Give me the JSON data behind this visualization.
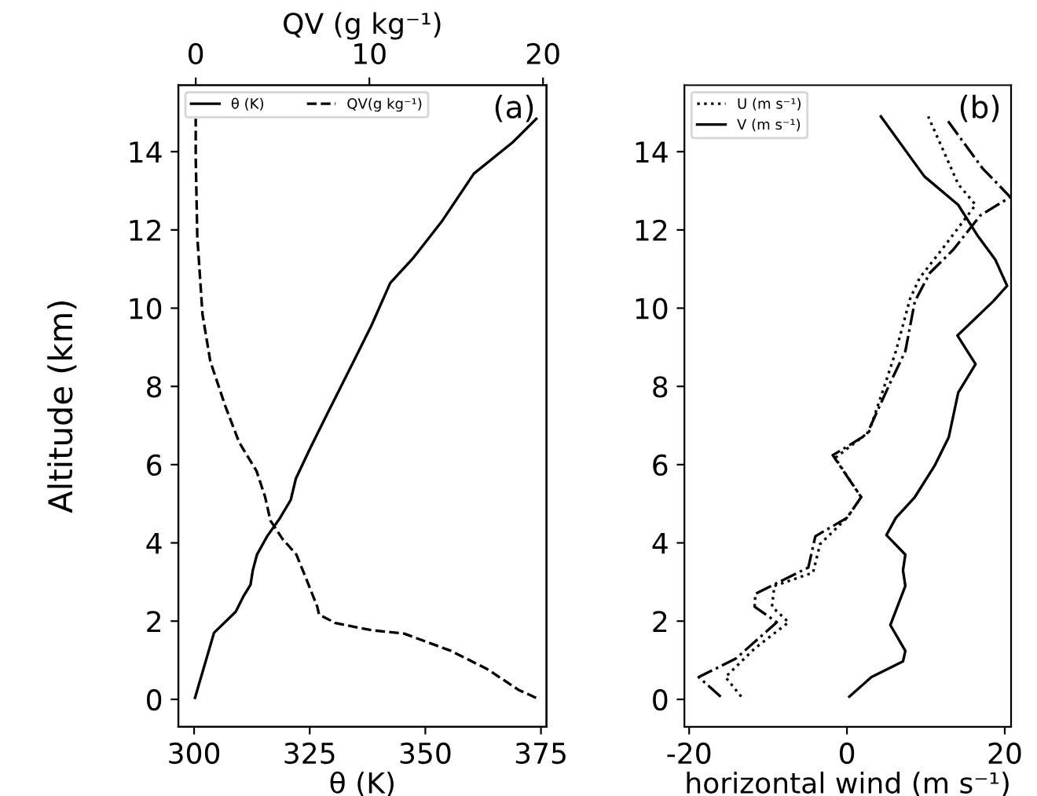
{
  "chart_data": [
    {
      "type": "line",
      "ylabel": "Altitude (km)",
      "xlabel": "θ (K)",
      "x2label": "QV (g kg⁻¹)",
      "xlim": [
        296.6,
        376.2
      ],
      "xticks": [
        300,
        325,
        350,
        375
      ],
      "x2lim": [
        -1,
        20.2
      ],
      "x2ticks": [
        0,
        10,
        20
      ],
      "ylim": [
        -0.7,
        15.7
      ],
      "yticks": [
        0,
        2,
        4,
        6,
        8,
        10,
        12,
        14
      ],
      "legend": "top left",
      "grid": false,
      "marker": "none",
      "annotations": [
        "(a)"
      ],
      "series": [
        {
          "name": "θ (K)",
          "color": "#000000",
          "line_style": "solid",
          "x": [
            300.2,
            304.3,
            309.0,
            310.7,
            312.2,
            312.7,
            313.6,
            315.8,
            318.6,
            320.9,
            322.0,
            324.9,
            328.8,
            334.5,
            338.4,
            342.4,
            347.5,
            353.7,
            360.5,
            368.9,
            374.0
          ],
          "values": [
            0.04,
            1.7,
            2.24,
            2.64,
            2.93,
            3.3,
            3.7,
            4.17,
            4.64,
            5.1,
            5.64,
            6.37,
            7.3,
            8.64,
            9.57,
            10.64,
            11.3,
            12.24,
            13.44,
            14.24,
            14.84
          ]
        },
        {
          "name": "QV(g kg⁻¹)",
          "color": "#000000",
          "line_style": "dashed",
          "axis": "x2",
          "x": [
            19.6,
            18.6,
            16.8,
            14.7,
            12.0,
            10.1,
            8.05,
            7.1,
            7.0,
            6.4,
            5.8,
            5.0,
            4.3,
            4.0,
            3.5,
            2.5,
            1.7,
            0.84,
            0.39,
            0.09,
            0,
            0
          ],
          "values": [
            0.04,
            0.24,
            0.77,
            1.24,
            1.68,
            1.77,
            1.95,
            2.17,
            2.37,
            3.04,
            3.7,
            4.1,
            4.57,
            5.17,
            5.84,
            6.57,
            7.5,
            8.64,
            9.84,
            11.84,
            13.84,
            14.84
          ]
        }
      ]
    },
    {
      "type": "line",
      "xlabel": "horizontal wind (m s⁻¹)",
      "xlim": [
        -20.6,
        20.8
      ],
      "xticks": [
        -20,
        0,
        20
      ],
      "ylim": [
        -0.7,
        15.7
      ],
      "yticks": [
        0,
        2,
        4,
        6,
        8,
        10,
        12,
        14
      ],
      "legend": "top left",
      "grid": false,
      "marker": "none",
      "annotations": [
        "(b)"
      ],
      "series": [
        {
          "name": "U (m s⁻¹)",
          "color": "#000000",
          "line_style": "dotted",
          "x": [
            -13.4,
            -15.4,
            -11.7,
            -7.4,
            -9.5,
            -9.2,
            -4.3,
            -3.4,
            0,
            1.8,
            -1.5,
            2.8,
            4.9,
            6.2,
            8.0,
            9.2,
            12.3,
            16.3,
            14.1,
            10.3
          ],
          "values": [
            0.07,
            0.57,
            1.3,
            1.97,
            2.37,
            2.9,
            3.24,
            3.97,
            4.64,
            5.17,
            6.17,
            6.84,
            8.1,
            8.9,
            10.24,
            10.77,
            11.57,
            12.64,
            13.17,
            14.9
          ]
        },
        {
          "name": "V (m s⁻¹)",
          "color": "#000000",
          "line_style": "solid",
          "x": [
            0.3,
            3.1,
            7.1,
            7.4,
            5.5,
            7.4,
            7.1,
            7.4,
            5.0,
            6.2,
            8.6,
            11.1,
            12.9,
            14.1,
            16.3,
            14.0,
            18.5,
            20.3,
            18.8,
            16.6,
            14.1,
            9.8,
            4.3
          ],
          "values": [
            0.07,
            0.57,
            0.97,
            1.24,
            1.9,
            2.9,
            3.3,
            3.7,
            4.2,
            4.64,
            5.17,
            5.97,
            6.7,
            7.84,
            8.57,
            9.3,
            10.17,
            10.57,
            11.24,
            11.84,
            12.64,
            13.37,
            14.9
          ]
        },
        {
          "color": "#000000",
          "line_style": "dashdot",
          "x": [
            -16.0,
            -18.8,
            -14.1,
            -8.9,
            -11.7,
            -11.6,
            -4.9,
            -4.0,
            0,
            1.8,
            -1.8,
            2.5,
            5.5,
            7.4,
            8.6,
            10.5,
            13.5,
            16.9,
            20.7,
            17.2,
            12.6
          ],
          "values": [
            0.07,
            0.57,
            1.04,
            1.97,
            2.37,
            2.7,
            3.37,
            4.17,
            4.64,
            5.17,
            6.24,
            6.77,
            8.1,
            8.9,
            10.17,
            10.9,
            11.5,
            12.37,
            12.84,
            13.57,
            14.84
          ]
        }
      ]
    }
  ]
}
